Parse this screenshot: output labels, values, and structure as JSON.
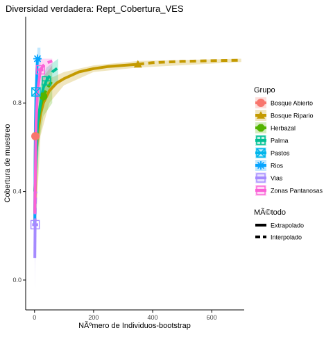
{
  "chart_data": {
    "type": "line",
    "title": "Diversidad verdadera: Rept_Cobertura_VES",
    "xlabel": "NÃºmero de Individuos-bootstrap",
    "ylabel": "Cobertura de muestreo",
    "xlim": [
      -30,
      710
    ],
    "ylim": [
      -0.135,
      1.19
    ],
    "x_ticks": [
      0,
      200,
      400,
      600
    ],
    "x_tick_labels": [
      "0",
      "200",
      "400",
      "600"
    ],
    "y_ticks": [
      0.0,
      0.4,
      0.8
    ],
    "y_tick_labels": [
      "0.0",
      "0.4",
      "0.8"
    ],
    "grid": false,
    "legend": {
      "placement": "right",
      "group_title": "Grupo",
      "method_title": "MÃ©todo",
      "method_items": [
        "Extrapolado",
        "Interpolado"
      ]
    },
    "series": [
      {
        "name": "Bosque Abierto",
        "color": "#F8766D",
        "marker": "circle",
        "reference": {
          "x": 3,
          "y": 0.65
        },
        "interpolated": {
          "x": [
            1,
            2,
            3
          ],
          "y": [
            0.25,
            0.55,
            0.65
          ]
        },
        "extrapolated": {
          "x": [
            3,
            4,
            5,
            6
          ],
          "y": [
            0.65,
            0.72,
            0.77,
            0.8
          ]
        },
        "band": {
          "x": [
            1,
            3,
            6
          ],
          "lower": [
            0.1,
            0.45,
            0.6
          ],
          "upper": [
            0.4,
            0.85,
            1.0
          ]
        }
      },
      {
        "name": "Bosque Ripario",
        "color": "#C49A00",
        "marker": "triangle",
        "reference": {
          "x": 350,
          "y": 0.975
        },
        "interpolated": {
          "x": [
            1,
            5,
            10,
            20,
            30,
            50,
            75,
            100,
            150,
            200,
            250,
            300,
            350
          ],
          "y": [
            0.3,
            0.55,
            0.65,
            0.75,
            0.8,
            0.855,
            0.89,
            0.91,
            0.94,
            0.955,
            0.965,
            0.97,
            0.975
          ]
        },
        "extrapolated": {
          "x": [
            350,
            400,
            500,
            600,
            700
          ],
          "y": [
            0.975,
            0.982,
            0.988,
            0.991,
            0.993
          ]
        },
        "band": {
          "x": [
            1,
            20,
            50,
            100,
            200,
            350,
            700
          ],
          "lower": [
            0.15,
            0.65,
            0.8,
            0.88,
            0.94,
            0.96,
            0.985
          ],
          "upper": [
            0.45,
            0.85,
            0.91,
            0.94,
            0.97,
            0.99,
            1.0
          ]
        }
      },
      {
        "name": "Herbazal",
        "color": "#53B400",
        "marker": "octagon",
        "reference": {
          "x": 30,
          "y": 0.83
        },
        "interpolated": {
          "x": [
            1,
            5,
            10,
            20,
            30
          ],
          "y": [
            0.4,
            0.6,
            0.7,
            0.78,
            0.83
          ]
        },
        "extrapolated": {
          "x": [
            30,
            40,
            50,
            60
          ],
          "y": [
            0.83,
            0.86,
            0.88,
            0.9
          ]
        },
        "band": {
          "x": [
            1,
            10,
            30,
            60
          ],
          "lower": [
            0.25,
            0.58,
            0.74,
            0.8
          ],
          "upper": [
            0.55,
            0.82,
            0.92,
            0.97
          ]
        }
      },
      {
        "name": "Palma",
        "color": "#00C094",
        "marker": "square-plus",
        "reference": {
          "x": 40,
          "y": 0.9
        },
        "interpolated": {
          "x": [
            1,
            10,
            20,
            30,
            40
          ],
          "y": [
            0.4,
            0.7,
            0.8,
            0.87,
            0.9
          ]
        },
        "extrapolated": {
          "x": [
            40,
            50,
            60,
            70,
            80
          ],
          "y": [
            0.9,
            0.92,
            0.94,
            0.95,
            0.96
          ]
        },
        "band": {
          "x": [
            1,
            20,
            40,
            80
          ],
          "lower": [
            0.3,
            0.72,
            0.83,
            0.9
          ],
          "upper": [
            0.55,
            0.88,
            0.96,
            1.0
          ]
        }
      },
      {
        "name": "Pastos",
        "color": "#00B6EB",
        "marker": "square-cross",
        "reference": {
          "x": 5,
          "y": 0.85
        },
        "interpolated": {
          "x": [
            1,
            3,
            5
          ],
          "y": [
            0.3,
            0.7,
            0.85
          ]
        },
        "extrapolated": {
          "x": [
            5,
            7,
            10
          ],
          "y": [
            0.85,
            0.88,
            0.9
          ]
        },
        "band": {
          "x": [
            1,
            5,
            10
          ],
          "lower": [
            0.15,
            0.7,
            0.8
          ],
          "upper": [
            0.5,
            0.97,
            1.0
          ]
        }
      },
      {
        "name": "Rios",
        "color": "#06A4FF",
        "marker": "asterisk",
        "reference": {
          "x": 10,
          "y": 1.0
        },
        "interpolated": {
          "x": [
            1,
            2,
            4,
            6,
            8,
            10
          ],
          "y": [
            0.25,
            0.45,
            0.7,
            0.85,
            0.95,
            1.0
          ]
        },
        "extrapolated": {
          "x": [
            10,
            12,
            14,
            16,
            18,
            20
          ],
          "y": [
            1.0,
            1.0,
            1.0,
            1.0,
            1.0,
            1.0
          ]
        },
        "band": {
          "x": [
            1,
            5,
            10,
            20
          ],
          "lower": [
            0.1,
            0.55,
            0.9,
            0.95
          ],
          "upper": [
            0.45,
            0.9,
            1.05,
            1.05
          ]
        }
      },
      {
        "name": "Vias",
        "color": "#A58AFF",
        "marker": "square-bar",
        "reference": {
          "x": 2,
          "y": 0.25
        },
        "interpolated": {
          "x": [
            1,
            2
          ],
          "y": [
            0.1,
            0.25
          ]
        },
        "extrapolated": {
          "x": [
            2,
            3,
            4
          ],
          "y": [
            0.25,
            0.35,
            0.4
          ]
        },
        "band": {
          "x": [
            1,
            2,
            4
          ],
          "lower": [
            -0.05,
            0.05,
            0.15
          ],
          "upper": [
            0.3,
            0.45,
            0.6
          ]
        }
      },
      {
        "name": "Zonas Pantanosas",
        "color": "#FB61D7",
        "marker": "square-bar",
        "reference": {
          "x": 20,
          "y": 0.95
        },
        "interpolated": {
          "x": [
            1,
            5,
            10,
            20
          ],
          "y": [
            0.3,
            0.7,
            0.85,
            0.95
          ]
        },
        "extrapolated": {
          "x": [
            20,
            30,
            40,
            50,
            60
          ],
          "y": [
            0.95,
            0.97,
            0.98,
            0.985,
            0.99
          ]
        },
        "band": {
          "x": [
            1,
            10,
            20,
            60
          ],
          "lower": [
            0.15,
            0.75,
            0.88,
            0.95
          ],
          "upper": [
            0.5,
            0.92,
            1.0,
            1.0
          ]
        }
      }
    ]
  }
}
